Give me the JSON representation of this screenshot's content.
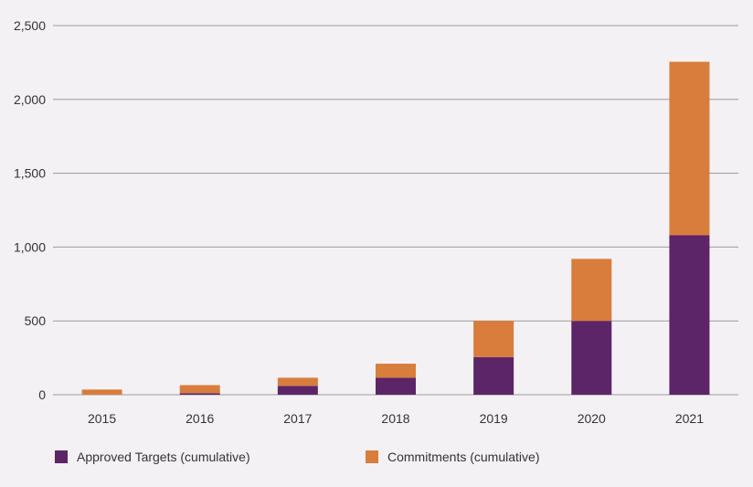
{
  "chart_data": {
    "type": "bar",
    "stacked": true,
    "categories": [
      "2015",
      "2016",
      "2017",
      "2018",
      "2019",
      "2020",
      "2021"
    ],
    "series": [
      {
        "name": "Approved Targets (cumulative)",
        "color": "#5c2568",
        "values": [
          0,
          10,
          60,
          115,
          255,
          500,
          1080
        ]
      },
      {
        "name": "Commitments (cumulative)",
        "color": "#d87d3c",
        "values": [
          35,
          55,
          55,
          95,
          245,
          420,
          1175
        ]
      }
    ],
    "ylim": [
      0,
      2500
    ],
    "yticks": [
      "0",
      "500",
      "1,000",
      "1,500",
      "2,000",
      "2,500"
    ],
    "ytick_values": [
      0,
      500,
      1000,
      1500,
      2000,
      2500
    ],
    "grid": true,
    "legend_position": "bottom-left",
    "title": "",
    "xlabel": "",
    "ylabel": ""
  }
}
